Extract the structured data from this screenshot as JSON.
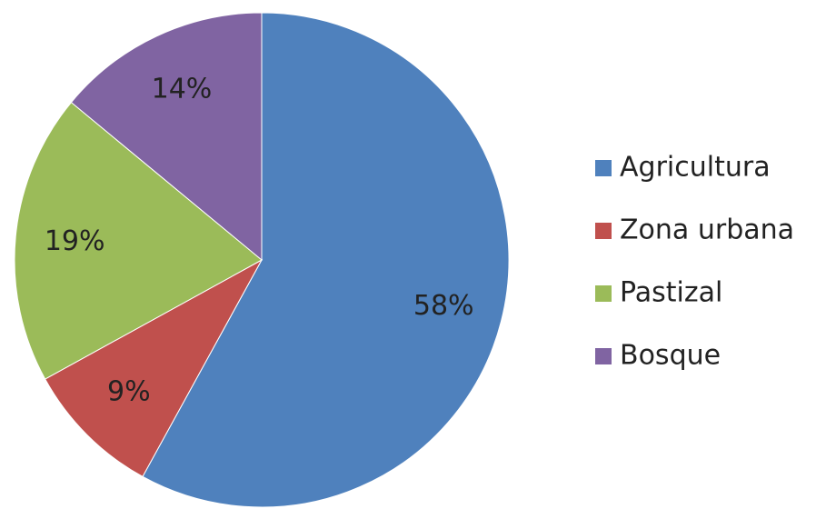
{
  "chart_data": {
    "type": "pie",
    "categories": [
      "Agricultura",
      "Zona urbana",
      "Pastizal",
      "Bosque"
    ],
    "values": [
      58,
      9,
      19,
      14
    ],
    "value_labels": [
      "58%",
      "9%",
      "19%",
      "14%"
    ],
    "colors": [
      "#4f81bd",
      "#c0504d",
      "#9bbb59",
      "#8064a2"
    ],
    "legend": "right"
  }
}
